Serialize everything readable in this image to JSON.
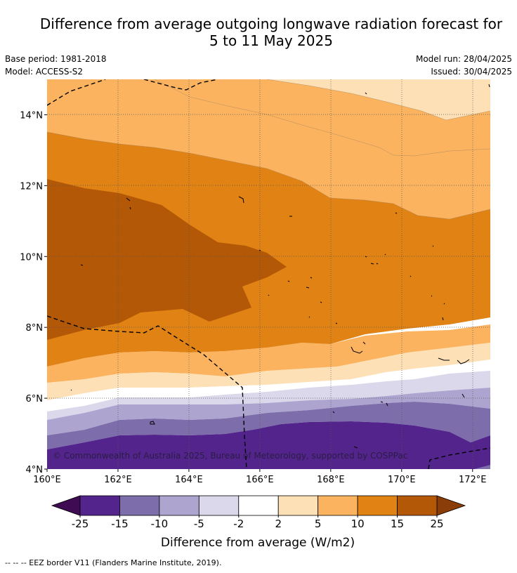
{
  "header": {
    "title_line1": "Difference from average outgoing longwave radiation forecast for",
    "title_line2": "5 to 11 May 2025",
    "base_period": "Base period: 1981-2018",
    "model": "Model: ACCESS-S2",
    "model_run": "Model run: 28/04/2025",
    "issued": "Issued: 30/04/2025"
  },
  "map": {
    "lat_range": [
      4,
      15
    ],
    "lon_range": [
      160,
      172.5
    ],
    "lat_ticks": [
      "4°N",
      "6°N",
      "8°N",
      "10°N",
      "12°N",
      "14°N"
    ],
    "lon_ticks": [
      "160°E",
      "162°E",
      "164°E",
      "166°E",
      "168°E",
      "170°E",
      "172°E"
    ],
    "copyright": "© Commonwealth of Australia 2025, Bureau of Meteorology, supported by COSPPac"
  },
  "colorbar": {
    "label": "Difference from average (W/m2)",
    "tick_labels": [
      "-25",
      "-15",
      "-10",
      "-5",
      "-2",
      "2",
      "5",
      "10",
      "15",
      "25"
    ],
    "extend_low_color": "#3f0b52",
    "extend_high_color": "#8a3d06",
    "colors": [
      "#53258c",
      "#7d6eab",
      "#ada5d0",
      "#dad8ea",
      "#ffffff",
      "#fee0b6",
      "#fbb35f",
      "#e08214",
      "#b35806"
    ]
  },
  "footnote": "--  --  -- EEZ border V11 (Flanders Marine Institute, 2019)."
}
